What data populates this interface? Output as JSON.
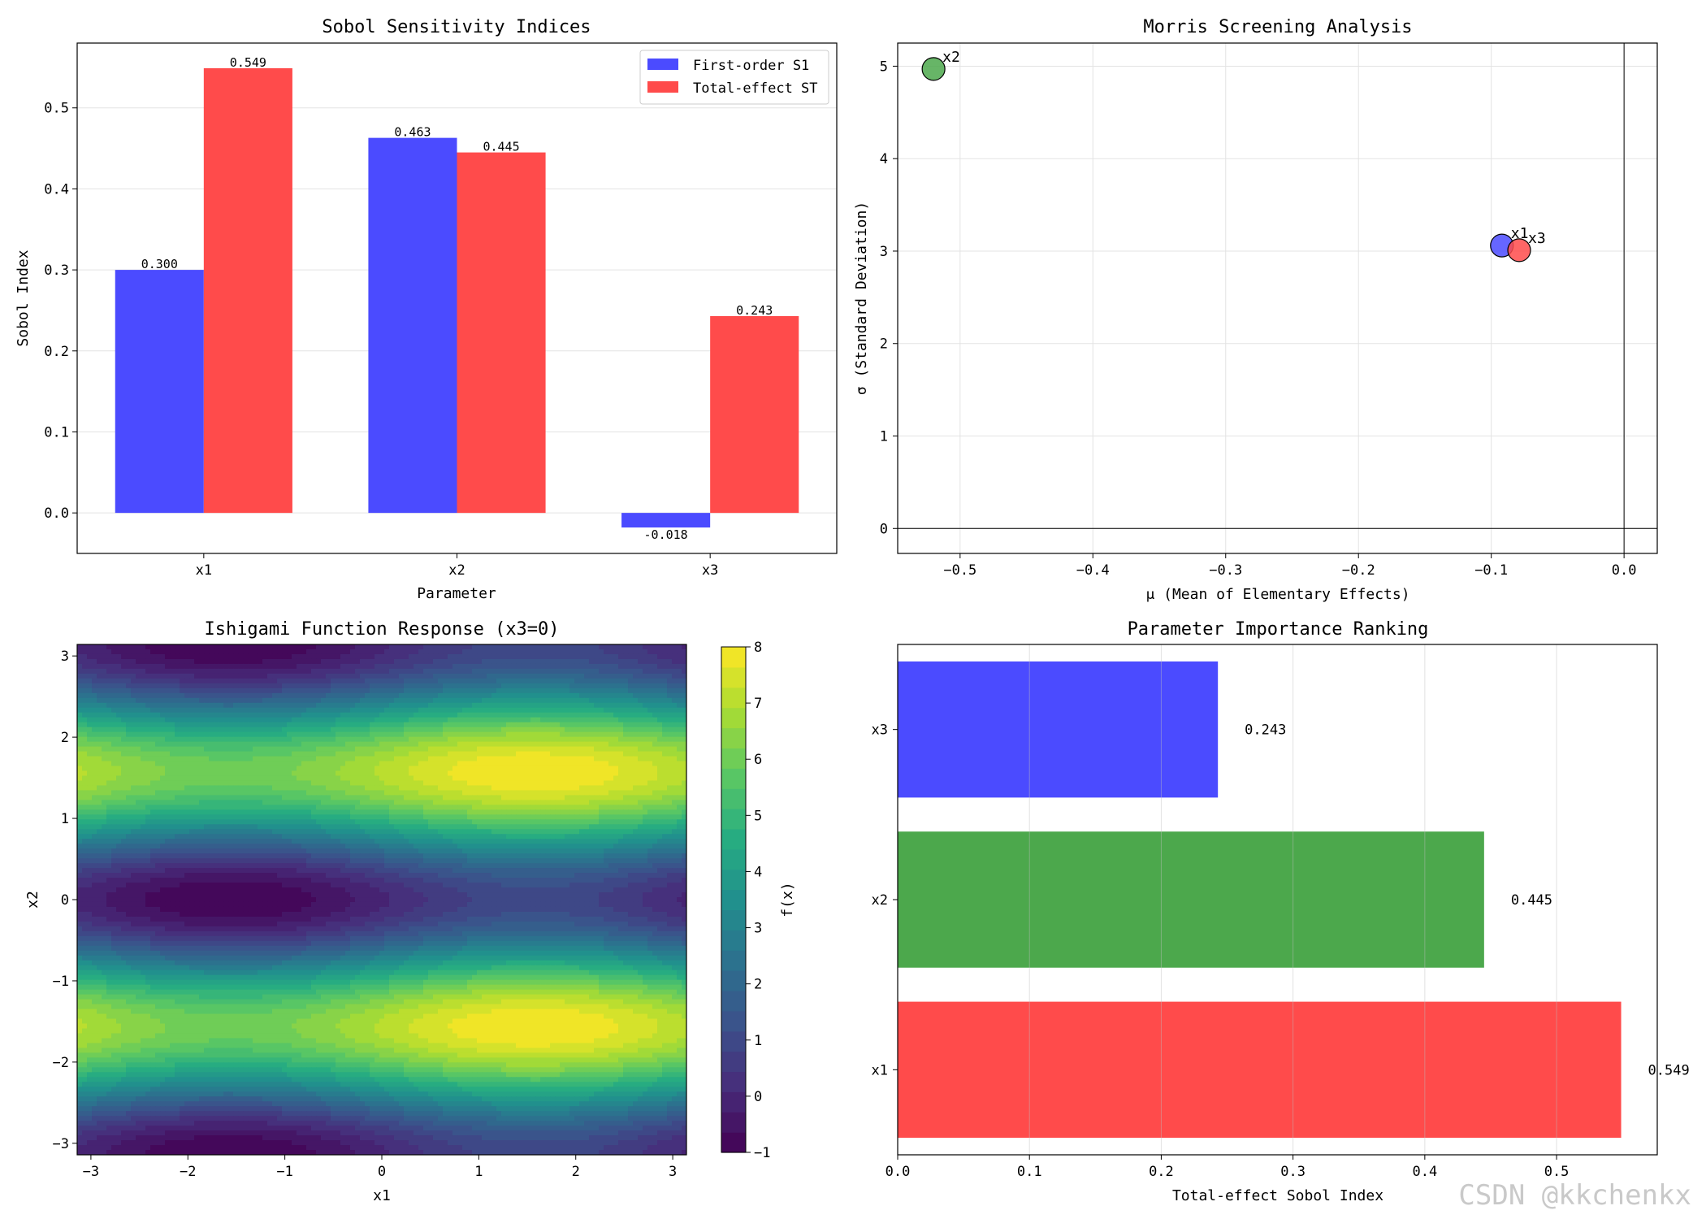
{
  "watermark": "CSDN @kkchenkx",
  "colors": {
    "blue": "#4b4bff",
    "red": "#ff4b4b",
    "green": "#4ca84c",
    "grid": "#e3e3e3"
  },
  "chart_data": [
    {
      "id": "sobol",
      "type": "bar",
      "title": "Sobol Sensitivity Indices",
      "xlabel": "Parameter",
      "ylabel": "Sobol Index",
      "categories": [
        "x1",
        "x2",
        "x3"
      ],
      "series": [
        {
          "name": "First-order S1",
          "values": [
            0.3,
            0.463,
            -0.018
          ],
          "labels": [
            "0.300",
            "0.463",
            "-0.018"
          ],
          "color": "#4b4bff"
        },
        {
          "name": "Total-effect ST",
          "values": [
            0.549,
            0.445,
            0.243
          ],
          "labels": [
            "0.549",
            "0.445",
            "0.243"
          ],
          "color": "#ff4b4b"
        }
      ],
      "ylim": [
        -0.05,
        0.58
      ],
      "yticks": [
        0.0,
        0.1,
        0.2,
        0.3,
        0.4,
        0.5
      ],
      "ytick_labels": [
        "0.0",
        "0.1",
        "0.2",
        "0.3",
        "0.4",
        "0.5"
      ],
      "legend": "top-right",
      "grid": "y"
    },
    {
      "id": "morris",
      "type": "scatter",
      "title": "Morris Screening Analysis",
      "xlabel": "μ (Mean of Elementary Effects)",
      "ylabel": "σ (Standard Deviation)",
      "points": [
        {
          "label": "x1",
          "x": -0.092,
          "y": 3.06,
          "color": "#4b4bff"
        },
        {
          "label": "x2",
          "x": -0.52,
          "y": 4.97,
          "color": "#4ca84c"
        },
        {
          "label": "x3",
          "x": -0.079,
          "y": 3.01,
          "color": "#ff4b4b"
        }
      ],
      "xlim": [
        -0.547,
        0.025
      ],
      "ylim": [
        -0.27,
        5.25
      ],
      "xticks": [
        -0.5,
        -0.4,
        -0.3,
        -0.2,
        -0.1,
        0.0
      ],
      "xtick_labels": [
        "−0.5",
        "−0.4",
        "−0.3",
        "−0.2",
        "−0.1",
        "0.0"
      ],
      "yticks": [
        0,
        1,
        2,
        3,
        4,
        5
      ],
      "ytick_labels": [
        "0",
        "1",
        "2",
        "3",
        "4",
        "5"
      ],
      "reference_lines": {
        "x": 0,
        "y": 0
      },
      "grid": true
    },
    {
      "id": "ishigami",
      "type": "heatmap",
      "title": "Ishigami Function Response (x3=0)",
      "xlabel": "x1",
      "ylabel": "x2",
      "function": "sin(x1) + 7*sin(x2)^2",
      "xlim": [
        -3.1416,
        3.1416
      ],
      "ylim": [
        -3.1416,
        3.1416
      ],
      "xticks": [
        -3,
        -2,
        -1,
        0,
        1,
        2,
        3
      ],
      "xtick_labels": [
        "−3",
        "−2",
        "−1",
        "0",
        "1",
        "2",
        "3"
      ],
      "yticks": [
        -3,
        -2,
        -1,
        0,
        1,
        2,
        3
      ],
      "ytick_labels": [
        "−3",
        "−2",
        "−1",
        "0",
        "1",
        "2",
        "3"
      ],
      "colorbar": {
        "label": "f(x)",
        "range": [
          -1,
          8
        ],
        "ticks": [
          -1,
          0,
          1,
          2,
          3,
          4,
          5,
          6,
          7,
          8
        ],
        "tick_labels": [
          "−1",
          "0",
          "1",
          "2",
          "3",
          "4",
          "5",
          "6",
          "7",
          "8"
        ],
        "levels": 25,
        "colormap": "viridis"
      }
    },
    {
      "id": "ranking",
      "type": "bar",
      "orientation": "horizontal",
      "title": "Parameter Importance Ranking",
      "xlabel": "Total-effect Sobol Index",
      "categories": [
        "x1",
        "x2",
        "x3"
      ],
      "values": [
        0.549,
        0.445,
        0.243
      ],
      "labels": [
        "0.549",
        "0.445",
        "0.243"
      ],
      "colors": [
        "#ff4b4b",
        "#4ca84c",
        "#4b4bff"
      ],
      "xlim": [
        0,
        0.5764
      ],
      "xticks": [
        0.0,
        0.1,
        0.2,
        0.3,
        0.4,
        0.5
      ],
      "xtick_labels": [
        "0.0",
        "0.1",
        "0.2",
        "0.3",
        "0.4",
        "0.5"
      ],
      "grid": "x"
    }
  ]
}
